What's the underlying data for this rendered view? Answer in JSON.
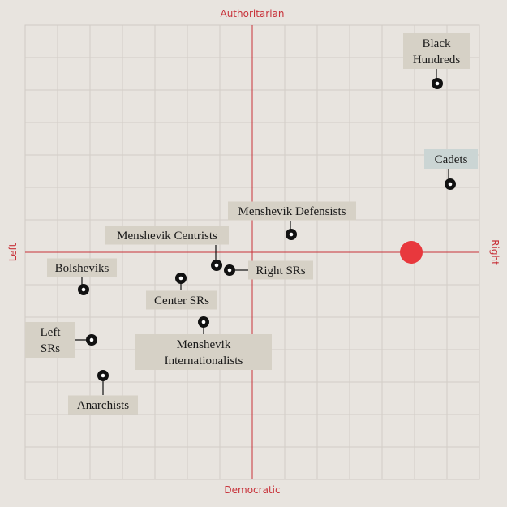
{
  "chart_data": {
    "type": "scatter",
    "title": "",
    "axes": {
      "top": "Authoritarian",
      "bottom": "Democratic",
      "left": "Left",
      "right": "Right"
    },
    "xlim": [
      -7,
      7
    ],
    "ylim": [
      -7,
      7
    ],
    "grid": true,
    "accent_color": "#e8383d",
    "axis_color": "#c8323a",
    "highlight": {
      "x": 4.9,
      "y": 0
    },
    "points": [
      {
        "label": "Black Hundreds",
        "x": 5.7,
        "y": 5.2
      },
      {
        "label": "Cadets",
        "x": 6.1,
        "y": 2.1,
        "highlighted": true
      },
      {
        "label": "Menshevik Defensists",
        "x": 1.2,
        "y": 0.55
      },
      {
        "label": "Menshevik Centrists",
        "x": -1.1,
        "y": -0.4
      },
      {
        "label": "Right SRs",
        "x": -0.7,
        "y": -0.55
      },
      {
        "label": "Bolsheviks",
        "x": -5.2,
        "y": -1.15
      },
      {
        "label": "Center SRs",
        "x": -2.2,
        "y": -0.8
      },
      {
        "label": "Menshevik Internationalists",
        "x": -1.5,
        "y": -2.15
      },
      {
        "label": "Left SRs",
        "x": -4.95,
        "y": -2.7
      },
      {
        "label": "Anarchists",
        "x": -4.6,
        "y": -3.8
      }
    ]
  }
}
